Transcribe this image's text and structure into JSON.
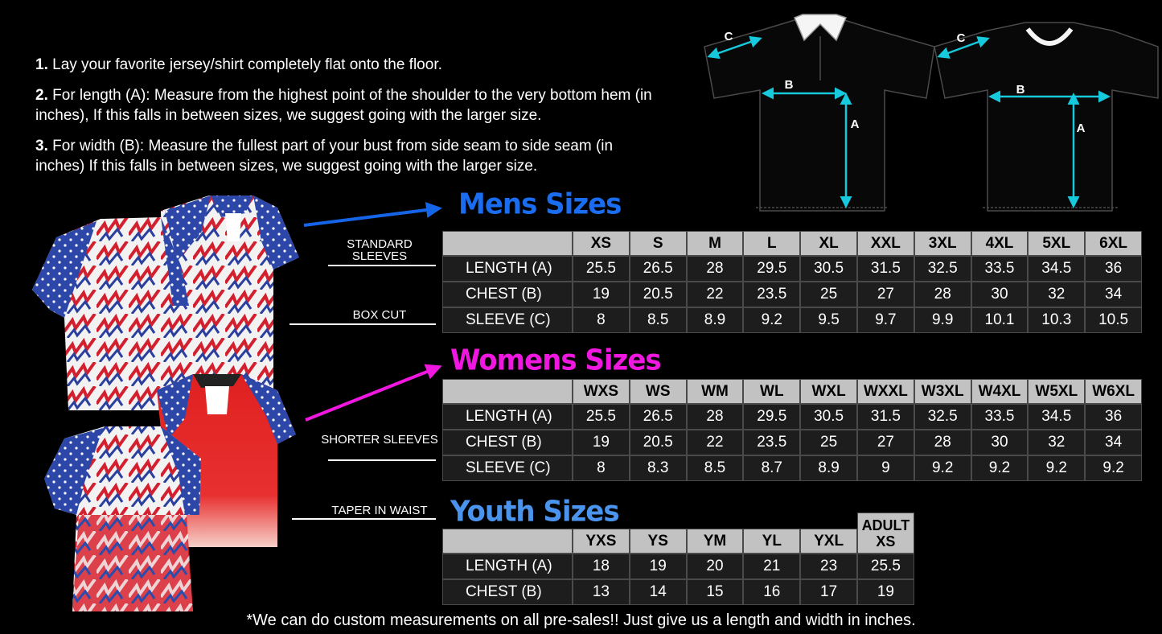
{
  "instructions": [
    {
      "number": "1.",
      "text": "Lay your favorite jersey/shirt completely flat onto the floor."
    },
    {
      "number": "2.",
      "text": "For length (A): Measure from the highest point of the shoulder to the very bottom hem (in inches), If this falls in between sizes, we suggest going with the larger size."
    },
    {
      "number": "3.",
      "text": "For width (B): Measure the fullest part of your bust from side seam to side seam (in inches) If this falls in between sizes, we suggest going with the larger size."
    }
  ],
  "diagrams": [
    {
      "sleeve": "C",
      "width": "B",
      "length": "A"
    },
    {
      "sleeve": "C",
      "width": "B",
      "length": "A"
    }
  ],
  "style_labels": [
    "STANDARD SLEEVES",
    "BOX CUT",
    "SHORTER SLEEVES",
    "TAPER IN WAIST"
  ],
  "tables": [
    {
      "title": "Mens Sizes",
      "sizes": [
        "XS",
        "S",
        "M",
        "L",
        "XL",
        "XXL",
        "3XL",
        "4XL",
        "5XL",
        "6XL"
      ],
      "rows": [
        {
          "label": "LENGTH (A)",
          "values": [
            25.5,
            26.5,
            28,
            29.5,
            30.5,
            31.5,
            32.5,
            33.5,
            34.5,
            36
          ]
        },
        {
          "label": "CHEST (B)",
          "values": [
            19,
            20.5,
            22,
            23.5,
            25,
            27,
            28,
            30,
            32,
            34
          ]
        },
        {
          "label": "SLEEVE (C)",
          "values": [
            8,
            8.5,
            8.9,
            9.2,
            9.5,
            9.7,
            9.9,
            10.1,
            10.3,
            10.5
          ]
        }
      ]
    },
    {
      "title": "Womens Sizes",
      "sizes": [
        "WXS",
        "WS",
        "WM",
        "WL",
        "WXL",
        "WXXL",
        "W3XL",
        "W4XL",
        "W5XL",
        "W6XL"
      ],
      "rows": [
        {
          "label": "LENGTH (A)",
          "values": [
            25.5,
            26.5,
            28,
            29.5,
            30.5,
            31.5,
            32.5,
            33.5,
            34.5,
            36
          ]
        },
        {
          "label": "CHEST (B)",
          "values": [
            19,
            20.5,
            22,
            23.5,
            25,
            27,
            28,
            30,
            32,
            34
          ]
        },
        {
          "label": "SLEEVE (C)",
          "values": [
            8,
            8.3,
            8.5,
            8.7,
            8.9,
            9,
            9.2,
            9.2,
            9.2,
            9.2
          ]
        }
      ]
    },
    {
      "title": "Youth Sizes",
      "sizes": [
        "YXS",
        "YS",
        "YM",
        "YL",
        "YXL",
        "ADULT XS"
      ],
      "rows": [
        {
          "label": "LENGTH (A)",
          "values": [
            18,
            19,
            20,
            21,
            23,
            25.5
          ]
        },
        {
          "label": "CHEST (B)",
          "values": [
            13,
            14,
            15,
            16,
            17,
            19
          ]
        }
      ]
    }
  ],
  "footnote": "*We can do custom measurements on all pre-sales!! Just give us a length and width in inches."
}
